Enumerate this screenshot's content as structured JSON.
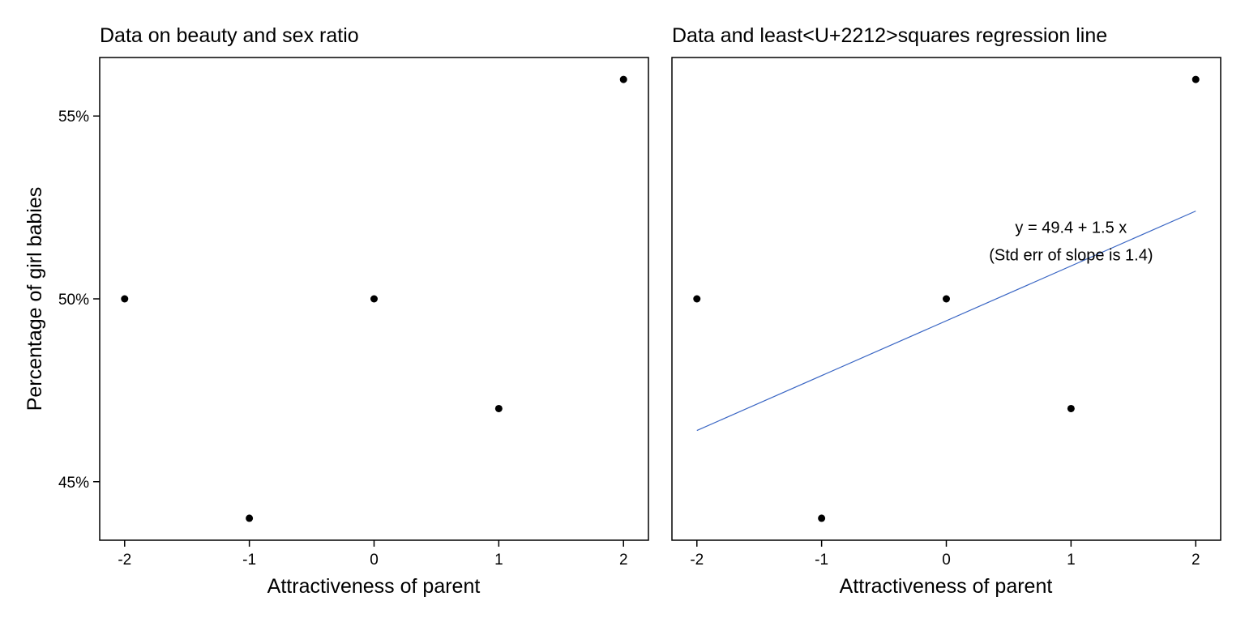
{
  "chart_data": [
    {
      "type": "scatter",
      "title": "Data on beauty and sex ratio",
      "xlabel": "Attractiveness of parent",
      "ylabel": "Percentage of girl babies",
      "x_ticks": [
        "-2",
        "-1",
        "0",
        "1",
        "2"
      ],
      "y_ticks": [
        "45%",
        "50%",
        "55%"
      ],
      "y_tick_values": [
        45,
        50,
        55
      ],
      "x_tick_values": [
        -2,
        -1,
        0,
        1,
        2
      ],
      "xlim": [
        -2.2,
        2.2
      ],
      "ylim": [
        43.4,
        56.6
      ],
      "grid": false,
      "points": [
        {
          "x": -2,
          "y": 50
        },
        {
          "x": -1,
          "y": 44
        },
        {
          "x": 0,
          "y": 50
        },
        {
          "x": 1,
          "y": 47
        },
        {
          "x": 2,
          "y": 56
        }
      ]
    },
    {
      "type": "scatter",
      "title": "Data and least<U+2212>squares regression line",
      "xlabel": "Attractiveness of parent",
      "ylabel": "",
      "x_ticks": [
        "-2",
        "-1",
        "0",
        "1",
        "2"
      ],
      "x_tick_values": [
        -2,
        -1,
        0,
        1,
        2
      ],
      "xlim": [
        -2.2,
        2.2
      ],
      "ylim": [
        43.4,
        56.6
      ],
      "grid": false,
      "points": [
        {
          "x": -2,
          "y": 50
        },
        {
          "x": -1,
          "y": 44
        },
        {
          "x": 0,
          "y": 50
        },
        {
          "x": 1,
          "y": 47
        },
        {
          "x": 2,
          "y": 56
        }
      ],
      "regression": {
        "intercept": 49.4,
        "slope": 1.5,
        "x_range": [
          -2,
          2
        ],
        "color": "#3a66c4"
      },
      "annotations": [
        {
          "text": "y = 49.4 + 1.5 x",
          "x": 1.0,
          "y": 51.8
        },
        {
          "text": "(Std err of slope is 1.4)",
          "x": 1.0,
          "y": 51.05
        }
      ]
    }
  ]
}
